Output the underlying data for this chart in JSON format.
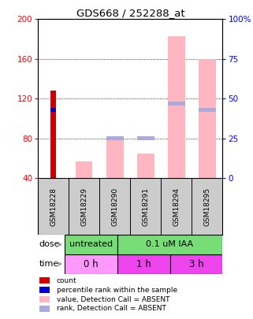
{
  "title": "GDS668 / 252288_at",
  "samples": [
    "GSM18228",
    "GSM18229",
    "GSM18290",
    "GSM18291",
    "GSM18294",
    "GSM18295"
  ],
  "absent_value_bars": [
    0,
    57,
    78,
    65,
    183,
    160
  ],
  "absent_rank_bars_pct": [
    0,
    0,
    25,
    25,
    47,
    43
  ],
  "count_values": [
    128,
    0,
    0,
    0,
    0,
    0
  ],
  "blue_rank_pct": [
    43,
    0,
    0,
    0,
    47,
    43
  ],
  "ylim_left": [
    40,
    200
  ],
  "ylim_right": [
    0,
    100
  ],
  "yticks_left": [
    40,
    80,
    120,
    160,
    200
  ],
  "ytick_labels_left": [
    "40",
    "80",
    "120",
    "160",
    "200"
  ],
  "yticks_right": [
    0,
    25,
    50,
    75,
    100
  ],
  "ytick_labels_right": [
    "0",
    "25",
    "50",
    "75",
    "100%"
  ],
  "bar_color_red": "#CC0000",
  "bar_color_pink": "#FFB6C1",
  "bar_color_blue": "#0000CC",
  "bar_color_lightblue": "#AAAADD",
  "plot_bg": "#FFFFFF",
  "sample_bg": "#CCCCCC",
  "dose_green": "#77DD77",
  "time_pink_light": "#FF99FF",
  "time_pink_dark": "#EE44EE",
  "legend_items": [
    [
      "#CC0000",
      "count"
    ],
    [
      "#0000CC",
      "percentile rank within the sample"
    ],
    [
      "#FFB6C1",
      "value, Detection Call = ABSENT"
    ],
    [
      "#AAAADD",
      "rank, Detection Call = ABSENT"
    ]
  ]
}
